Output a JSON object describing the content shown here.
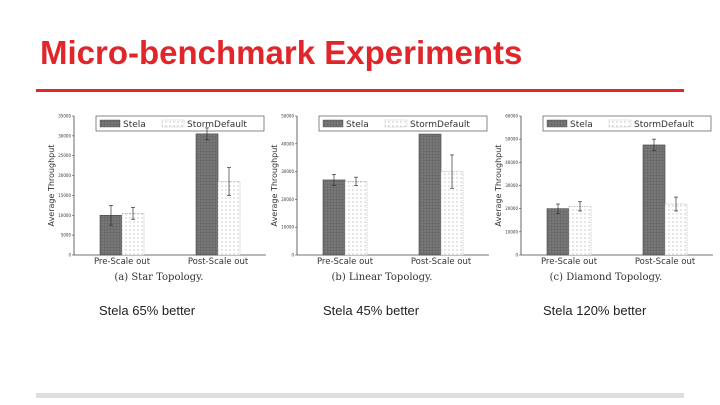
{
  "slide": {
    "title": "Micro-benchmark Experiments",
    "accent_color": "#e0262b",
    "notes": [
      "Stela 65% better",
      "Stela 45% better",
      "Stela 120% better"
    ]
  },
  "chart_data": [
    {
      "type": "bar",
      "caption": "(a) Star Topology.",
      "ylabel": "Average Throughput",
      "categories": [
        "Pre-Scale out",
        "Post-Scale out"
      ],
      "series": [
        {
          "name": "Stela",
          "values": [
            10000,
            30500
          ],
          "errors": [
            2500,
            1500
          ],
          "color": "#777777"
        },
        {
          "name": "StormDefault",
          "values": [
            10500,
            18500
          ],
          "errors": [
            1500,
            3500
          ],
          "color": "#ffffff"
        }
      ],
      "yticks": [
        0,
        5000,
        10000,
        15000,
        20000,
        25000,
        30000,
        35000
      ],
      "ylim": [
        0,
        35000
      ],
      "legend": "top"
    },
    {
      "type": "bar",
      "caption": "(b) Linear Topology.",
      "ylabel": "Average Throughput",
      "categories": [
        "Pre-Scale out",
        "Post-Scale out"
      ],
      "series": [
        {
          "name": "Stela",
          "values": [
            27000,
            43500
          ],
          "errors": [
            2000,
            0
          ],
          "color": "#777777"
        },
        {
          "name": "StormDefault",
          "values": [
            26500,
            30000
          ],
          "errors": [
            1500,
            6000
          ],
          "color": "#ffffff"
        }
      ],
      "yticks": [
        0,
        10000,
        20000,
        30000,
        40000,
        50000
      ],
      "ylim": [
        0,
        50000
      ],
      "legend": "top"
    },
    {
      "type": "bar",
      "caption": "(c) Diamond Topology.",
      "ylabel": "Average Throughput",
      "categories": [
        "Pre-Scale out",
        "Post-Scale out"
      ],
      "series": [
        {
          "name": "Stela",
          "values": [
            20000,
            47500
          ],
          "errors": [
            2000,
            2500
          ],
          "color": "#777777"
        },
        {
          "name": "StormDefault",
          "values": [
            21000,
            22000
          ],
          "errors": [
            2000,
            3000
          ],
          "color": "#ffffff"
        }
      ],
      "yticks": [
        0,
        10000,
        20000,
        30000,
        40000,
        50000,
        60000
      ],
      "ylim": [
        0,
        60000
      ],
      "legend": "top"
    }
  ]
}
